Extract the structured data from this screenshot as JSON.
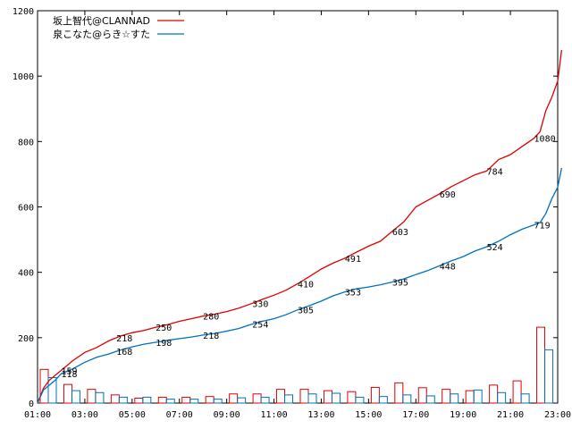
{
  "chart_data": {
    "type": "line",
    "title": "",
    "xlabel": "",
    "ylabel": "",
    "xlim": [
      "01:00",
      "23:00"
    ],
    "ylim": [
      0,
      1200
    ],
    "yticks": [
      0,
      200,
      400,
      600,
      800,
      1000,
      1200
    ],
    "xticks": [
      "01:00",
      "03:00",
      "05:00",
      "07:00",
      "09:00",
      "11:00",
      "13:00",
      "15:00",
      "17:00",
      "19:00",
      "21:00",
      "23:00"
    ],
    "grid": false,
    "legend": "top-left",
    "series": [
      {
        "name": "坂上智代@CLANNAD",
        "color": "#e00000",
        "points": [
          [
            "01:00",
            0
          ],
          [
            "01:15",
            45
          ],
          [
            "01:30",
            70
          ],
          [
            "01:45",
            85
          ],
          [
            "02:00",
            100
          ],
          [
            "02:30",
            130
          ],
          [
            "03:00",
            155
          ],
          [
            "03:30",
            170
          ],
          [
            "04:00",
            190
          ],
          [
            "04:30",
            205
          ],
          [
            "05:00",
            215
          ],
          [
            "05:30",
            222
          ],
          [
            "06:00",
            232
          ],
          [
            "06:30",
            240
          ],
          [
            "07:00",
            250
          ],
          [
            "07:30",
            258
          ],
          [
            "08:00",
            266
          ],
          [
            "08:30",
            272
          ],
          [
            "09:00",
            280
          ],
          [
            "09:30",
            290
          ],
          [
            "10:00",
            303
          ],
          [
            "10:30",
            317
          ],
          [
            "11:00",
            330
          ],
          [
            "11:30",
            345
          ],
          [
            "12:00",
            365
          ],
          [
            "12:30",
            387
          ],
          [
            "13:00",
            410
          ],
          [
            "13:30",
            428
          ],
          [
            "14:00",
            443
          ],
          [
            "14:30",
            462
          ],
          [
            "15:00",
            480
          ],
          [
            "15:30",
            495
          ],
          [
            "16:00",
            525
          ],
          [
            "16:30",
            555
          ],
          [
            "17:00",
            600
          ],
          [
            "17:30",
            620
          ],
          [
            "18:00",
            640
          ],
          [
            "18:30",
            662
          ],
          [
            "19:00",
            680
          ],
          [
            "19:30",
            698
          ],
          [
            "20:00",
            710
          ],
          [
            "20:30",
            745
          ],
          [
            "21:00",
            760
          ],
          [
            "21:30",
            785
          ],
          [
            "22:00",
            810
          ],
          [
            "22:15",
            830
          ],
          [
            "22:30",
            895
          ],
          [
            "22:45",
            935
          ],
          [
            "23:00",
            985
          ],
          [
            "23:10",
            1080
          ]
        ],
        "annotations": [
          {
            "x": "02:00",
            "label": "159"
          },
          {
            "x": "04:20",
            "label": "218"
          },
          {
            "x": "06:00",
            "label": "250"
          },
          {
            "x": "08:00",
            "label": "280"
          },
          {
            "x": "10:05",
            "label": "330"
          },
          {
            "x": "12:00",
            "label": "410"
          },
          {
            "x": "14:00",
            "label": "491"
          },
          {
            "x": "16:00",
            "label": "603"
          },
          {
            "x": "18:00",
            "label": "690"
          },
          {
            "x": "20:00",
            "label": "784"
          },
          {
            "x": "22:00",
            "label": "1080"
          }
        ]
      },
      {
        "name": "泉こなた@らき☆すた",
        "color": "#0070c0",
        "points": [
          [
            "01:00",
            0
          ],
          [
            "01:15",
            40
          ],
          [
            "01:30",
            55
          ],
          [
            "01:45",
            70
          ],
          [
            "02:00",
            90
          ],
          [
            "02:30",
            105
          ],
          [
            "03:00",
            125
          ],
          [
            "03:30",
            140
          ],
          [
            "04:00",
            150
          ],
          [
            "04:30",
            162
          ],
          [
            "05:00",
            172
          ],
          [
            "05:30",
            180
          ],
          [
            "06:00",
            186
          ],
          [
            "06:30",
            192
          ],
          [
            "07:00",
            197
          ],
          [
            "07:30",
            202
          ],
          [
            "08:00",
            208
          ],
          [
            "08:30",
            213
          ],
          [
            "09:00",
            220
          ],
          [
            "09:30",
            228
          ],
          [
            "10:00",
            240
          ],
          [
            "10:30",
            250
          ],
          [
            "11:00",
            258
          ],
          [
            "11:30",
            270
          ],
          [
            "12:00",
            285
          ],
          [
            "12:30",
            298
          ],
          [
            "13:00",
            312
          ],
          [
            "13:30",
            328
          ],
          [
            "14:00",
            340
          ],
          [
            "14:30",
            350
          ],
          [
            "15:00",
            355
          ],
          [
            "15:30",
            362
          ],
          [
            "16:00",
            370
          ],
          [
            "16:30",
            380
          ],
          [
            "17:00",
            393
          ],
          [
            "17:30",
            405
          ],
          [
            "18:00",
            420
          ],
          [
            "18:30",
            435
          ],
          [
            "19:00",
            448
          ],
          [
            "19:30",
            465
          ],
          [
            "20:00",
            478
          ],
          [
            "20:30",
            495
          ],
          [
            "21:00",
            515
          ],
          [
            "21:30",
            532
          ],
          [
            "22:00",
            545
          ],
          [
            "22:15",
            552
          ],
          [
            "22:30",
            580
          ],
          [
            "22:45",
            625
          ],
          [
            "23:00",
            660
          ],
          [
            "23:10",
            719
          ]
        ],
        "annotations": [
          {
            "x": "02:00",
            "label": "118"
          },
          {
            "x": "04:20",
            "label": "168"
          },
          {
            "x": "06:00",
            "label": "198"
          },
          {
            "x": "08:00",
            "label": "218"
          },
          {
            "x": "10:05",
            "label": "254"
          },
          {
            "x": "12:00",
            "label": "305"
          },
          {
            "x": "14:00",
            "label": "353"
          },
          {
            "x": "16:00",
            "label": "395"
          },
          {
            "x": "18:00",
            "label": "448"
          },
          {
            "x": "20:00",
            "label": "524"
          },
          {
            "x": "22:00",
            "label": "719"
          }
        ]
      }
    ],
    "hourly_bars": {
      "hours": [
        "01:00",
        "02:00",
        "03:00",
        "04:00",
        "05:00",
        "06:00",
        "07:00",
        "08:00",
        "09:00",
        "10:00",
        "11:00",
        "12:00",
        "13:00",
        "14:00",
        "15:00",
        "16:00",
        "17:00",
        "18:00",
        "19:00",
        "20:00",
        "21:00",
        "22:00",
        "23:00"
      ],
      "series_1": [
        103,
        57,
        42,
        25,
        15,
        18,
        18,
        20,
        28,
        28,
        42,
        42,
        38,
        35,
        48,
        62,
        47,
        42,
        38,
        55,
        68,
        232,
        0
      ],
      "series_2": [
        78,
        38,
        32,
        18,
        18,
        12,
        12,
        12,
        16,
        18,
        25,
        28,
        30,
        18,
        20,
        25,
        22,
        28,
        40,
        32,
        28,
        163,
        0
      ]
    }
  }
}
